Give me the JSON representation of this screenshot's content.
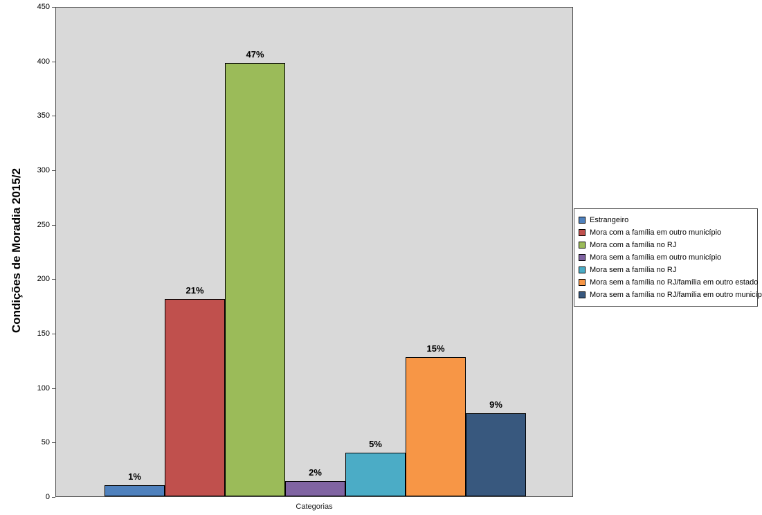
{
  "chart_data": {
    "type": "bar",
    "title": "",
    "ylabel": "Condições de Moradia 2015/2",
    "xlabel": "Categorias",
    "ylim": [
      0,
      450
    ],
    "ytick_interval": 50,
    "yticks": [
      0,
      50,
      100,
      150,
      200,
      250,
      300,
      350,
      400,
      450
    ],
    "grid": false,
    "legend_position": "right",
    "plot_background": "#d9d9d9",
    "series": [
      {
        "name": "Estrangeiro",
        "value": 10,
        "percent_label": "1%",
        "color": "#4f81bd"
      },
      {
        "name": "Mora com a família em outro município",
        "value": 181,
        "percent_label": "21%",
        "color": "#c0504d"
      },
      {
        "name": "Mora com a família no RJ",
        "value": 398,
        "percent_label": "47%",
        "color": "#9bbb59"
      },
      {
        "name": "Mora sem a família em outro município",
        "value": 14,
        "percent_label": "2%",
        "color": "#8064a2"
      },
      {
        "name": "Mora sem a família no RJ",
        "value": 40,
        "percent_label": "5%",
        "color": "#4bacc6"
      },
      {
        "name": "Mora sem a família no RJ/família em outro estado",
        "value": 128,
        "percent_label": "15%",
        "color": "#f79646"
      },
      {
        "name": "Mora sem a família no RJ/família em outro município",
        "value": 76,
        "percent_label": "9%",
        "color": "#38587e"
      }
    ]
  }
}
